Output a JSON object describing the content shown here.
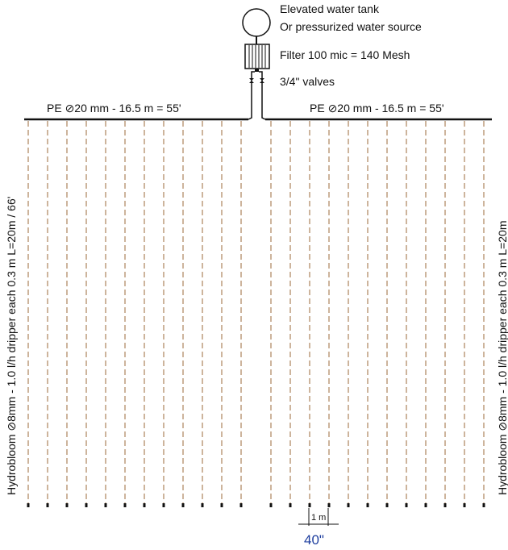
{
  "source": {
    "line1": "Elevated water tank",
    "line2": "Or pressurized water source",
    "filter": "Filter 100 mic = 140 Mesh",
    "valves": "3/4\" valves"
  },
  "mains": {
    "left": "PE ⊘20 mm - 16.5 m = 55'",
    "right": "PE ⊘20 mm - 16.5 m = 55'"
  },
  "laterals": {
    "left_label": "Hydrobloom ⊘8mm - 1.0 l/h dripper each 0.3 m L=20m  / 66'",
    "right_label": "Hydrobloom ⊘8mm - 1.0 l/h dripper each 0.3 m L=20m"
  },
  "spacing": {
    "metric": "1 m",
    "imperial": "40\""
  },
  "colors": {
    "lateral": "#9b6a3a",
    "line": "#111111",
    "dimension_blue": "#1f3f9f"
  }
}
